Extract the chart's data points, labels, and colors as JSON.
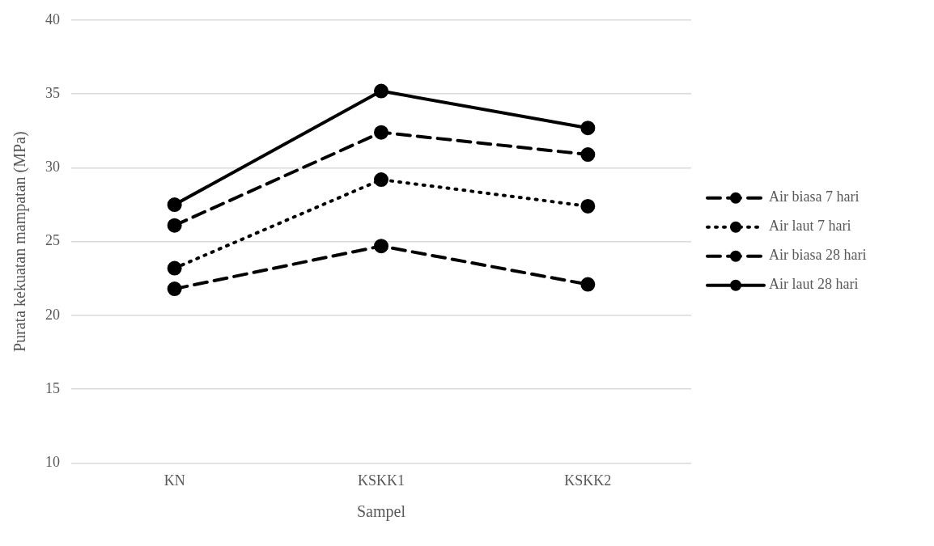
{
  "chart_data": {
    "type": "line",
    "xlabel": "Sampel",
    "ylabel": "Purata kekuatan mampatan (MPa)",
    "categories": [
      "KN",
      "KSKK1",
      "KSKK2"
    ],
    "series": [
      {
        "name": "Air biasa 7 hari",
        "color": "#000000",
        "line_style": "dashed",
        "values": [
          21.8,
          24.7,
          22.1
        ]
      },
      {
        "name": "Air laut 7 hari",
        "color": "#000000",
        "line_style": "dotted",
        "values": [
          23.2,
          29.2,
          27.4
        ]
      },
      {
        "name": "Air biasa 28 hari",
        "color": "#000000",
        "line_style": "dashed",
        "values": [
          26.1,
          32.4,
          30.9
        ]
      },
      {
        "name": "Air laut 28 hari",
        "color": "#000000",
        "line_style": "solid",
        "values": [
          27.5,
          35.2,
          32.7
        ]
      }
    ],
    "ylim": [
      10,
      40
    ],
    "yticks": [
      10,
      15,
      20,
      25,
      30,
      35,
      40
    ],
    "grid": "y",
    "legend": "right",
    "marker": "circle"
  }
}
